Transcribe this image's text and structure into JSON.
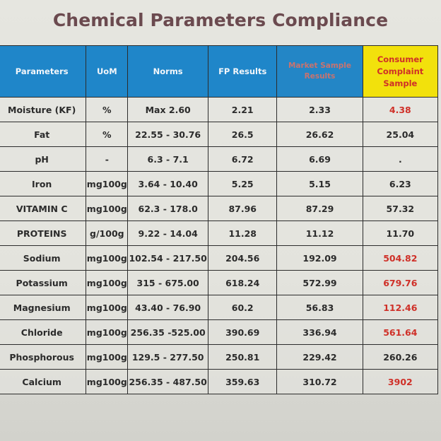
{
  "title": "Chemical Parameters Compliance",
  "colors": {
    "header_blue": "#1f86c9",
    "consumer_header_yellow": "#f2e10c",
    "red_value": "#cf3028",
    "title_color": "#6b4a4f"
  },
  "headers": {
    "parameters": "Parameters",
    "uom": "UoM",
    "norms": "Norms",
    "fp_results": "FP Results",
    "market": "Market Sample Results",
    "consumer": "Consumer Complaint Sample"
  },
  "rows": [
    {
      "parameter": "Moisture (KF)",
      "uom": "%",
      "norms": "Max 2.60",
      "fp": "2.21",
      "market": "2.33",
      "consumer": "4.38",
      "consumer_red": true
    },
    {
      "parameter": "Fat",
      "uom": "%",
      "norms": "22.55 - 30.76",
      "fp": "26.5",
      "market": "26.62",
      "consumer": "25.04",
      "consumer_red": false
    },
    {
      "parameter": "pH",
      "uom": "-",
      "norms": "6.3 - 7.1",
      "fp": "6.72",
      "market": "6.69",
      "consumer": ".",
      "consumer_red": false
    },
    {
      "parameter": "Iron",
      "uom": "mg100g",
      "norms": "3.64 - 10.40",
      "fp": "5.25",
      "market": "5.15",
      "consumer": "6.23",
      "consumer_red": false
    },
    {
      "parameter": "VITAMIN C",
      "uom": "mg100g",
      "norms": "62.3 - 178.0",
      "fp": "87.96",
      "market": "87.29",
      "consumer": "57.32",
      "consumer_red": false
    },
    {
      "parameter": "PROTEINS",
      "uom": "g/100g",
      "norms": "9.22 - 14.04",
      "fp": "11.28",
      "market": "11.12",
      "consumer": "11.70",
      "consumer_red": false
    },
    {
      "parameter": "Sodium",
      "uom": "mg100g",
      "norms": "102.54 - 217.50",
      "fp": "204.56",
      "market": "192.09",
      "consumer": "504.82",
      "consumer_red": true
    },
    {
      "parameter": "Potassium",
      "uom": "mg100g",
      "norms": "315 - 675.00",
      "fp": "618.24",
      "market": "572.99",
      "consumer": "679.76",
      "consumer_red": true
    },
    {
      "parameter": "Magnesium",
      "uom": "mg100g",
      "norms": "43.40 - 76.90",
      "fp": "60.2",
      "market": "56.83",
      "consumer": "112.46",
      "consumer_red": true
    },
    {
      "parameter": "Chloride",
      "uom": "mg100g",
      "norms": "256.35 -525.00",
      "fp": "390.69",
      "market": "336.94",
      "consumer": "561.64",
      "consumer_red": true
    },
    {
      "parameter": "Phosphorous",
      "uom": "mg100g",
      "norms": "129.5 - 277.50",
      "fp": "250.81",
      "market": "229.42",
      "consumer": "260.26",
      "consumer_red": false
    },
    {
      "parameter": "Calcium",
      "uom": "mg100g",
      "norms": "256.35 - 487.50",
      "fp": "359.63",
      "market": "310.72",
      "consumer": "3902",
      "consumer_red": true
    }
  ]
}
